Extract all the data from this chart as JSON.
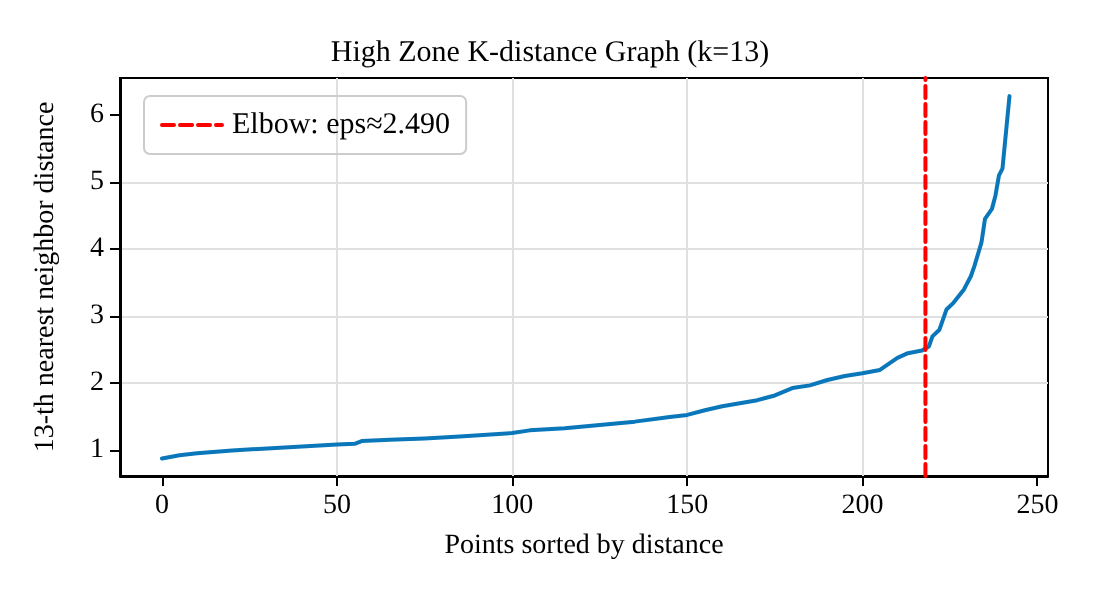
{
  "chart_data": {
    "type": "line",
    "title": "High Zone K-distance Graph (k=13)",
    "xlabel": "Points sorted by distance",
    "ylabel": "13-th nearest neighbor distance",
    "x": [
      0,
      5,
      10,
      20,
      30,
      40,
      50,
      55,
      57,
      65,
      75,
      85,
      100,
      105,
      115,
      125,
      135,
      145,
      150,
      155,
      160,
      170,
      175,
      180,
      185,
      190,
      195,
      200,
      205,
      210,
      213,
      217,
      219,
      220,
      222,
      224,
      226,
      229,
      231,
      232,
      234,
      235,
      237,
      238,
      239,
      240,
      242
    ],
    "series": [
      {
        "color": "#0a77bb",
        "values": [
          0.88,
          0.93,
          0.96,
          1.0,
          1.03,
          1.06,
          1.09,
          1.1,
          1.14,
          1.16,
          1.18,
          1.21,
          1.26,
          1.3,
          1.33,
          1.38,
          1.43,
          1.5,
          1.53,
          1.6,
          1.66,
          1.75,
          1.82,
          1.93,
          1.97,
          2.05,
          2.11,
          2.15,
          2.2,
          2.38,
          2.45,
          2.49,
          2.55,
          2.7,
          2.8,
          3.1,
          3.2,
          3.4,
          3.6,
          3.75,
          4.1,
          4.45,
          4.6,
          4.8,
          5.1,
          5.2,
          6.28
        ]
      },
      {
        "name": "Elbow: eps≈2.490",
        "color": "#ff0000",
        "line_style": "dashed",
        "x": [
          218,
          218
        ],
        "values": [
          0.62,
          6.55
        ]
      }
    ],
    "xlim": [
      -12,
      253
    ],
    "xticks": [
      0,
      50,
      100,
      150,
      200,
      250
    ],
    "ylim": [
      0.62,
      6.55
    ],
    "yticks": [
      1,
      2,
      3,
      4,
      5,
      6
    ],
    "grid": true,
    "legend": "top left",
    "line_style": "solid",
    "marker": "none"
  }
}
